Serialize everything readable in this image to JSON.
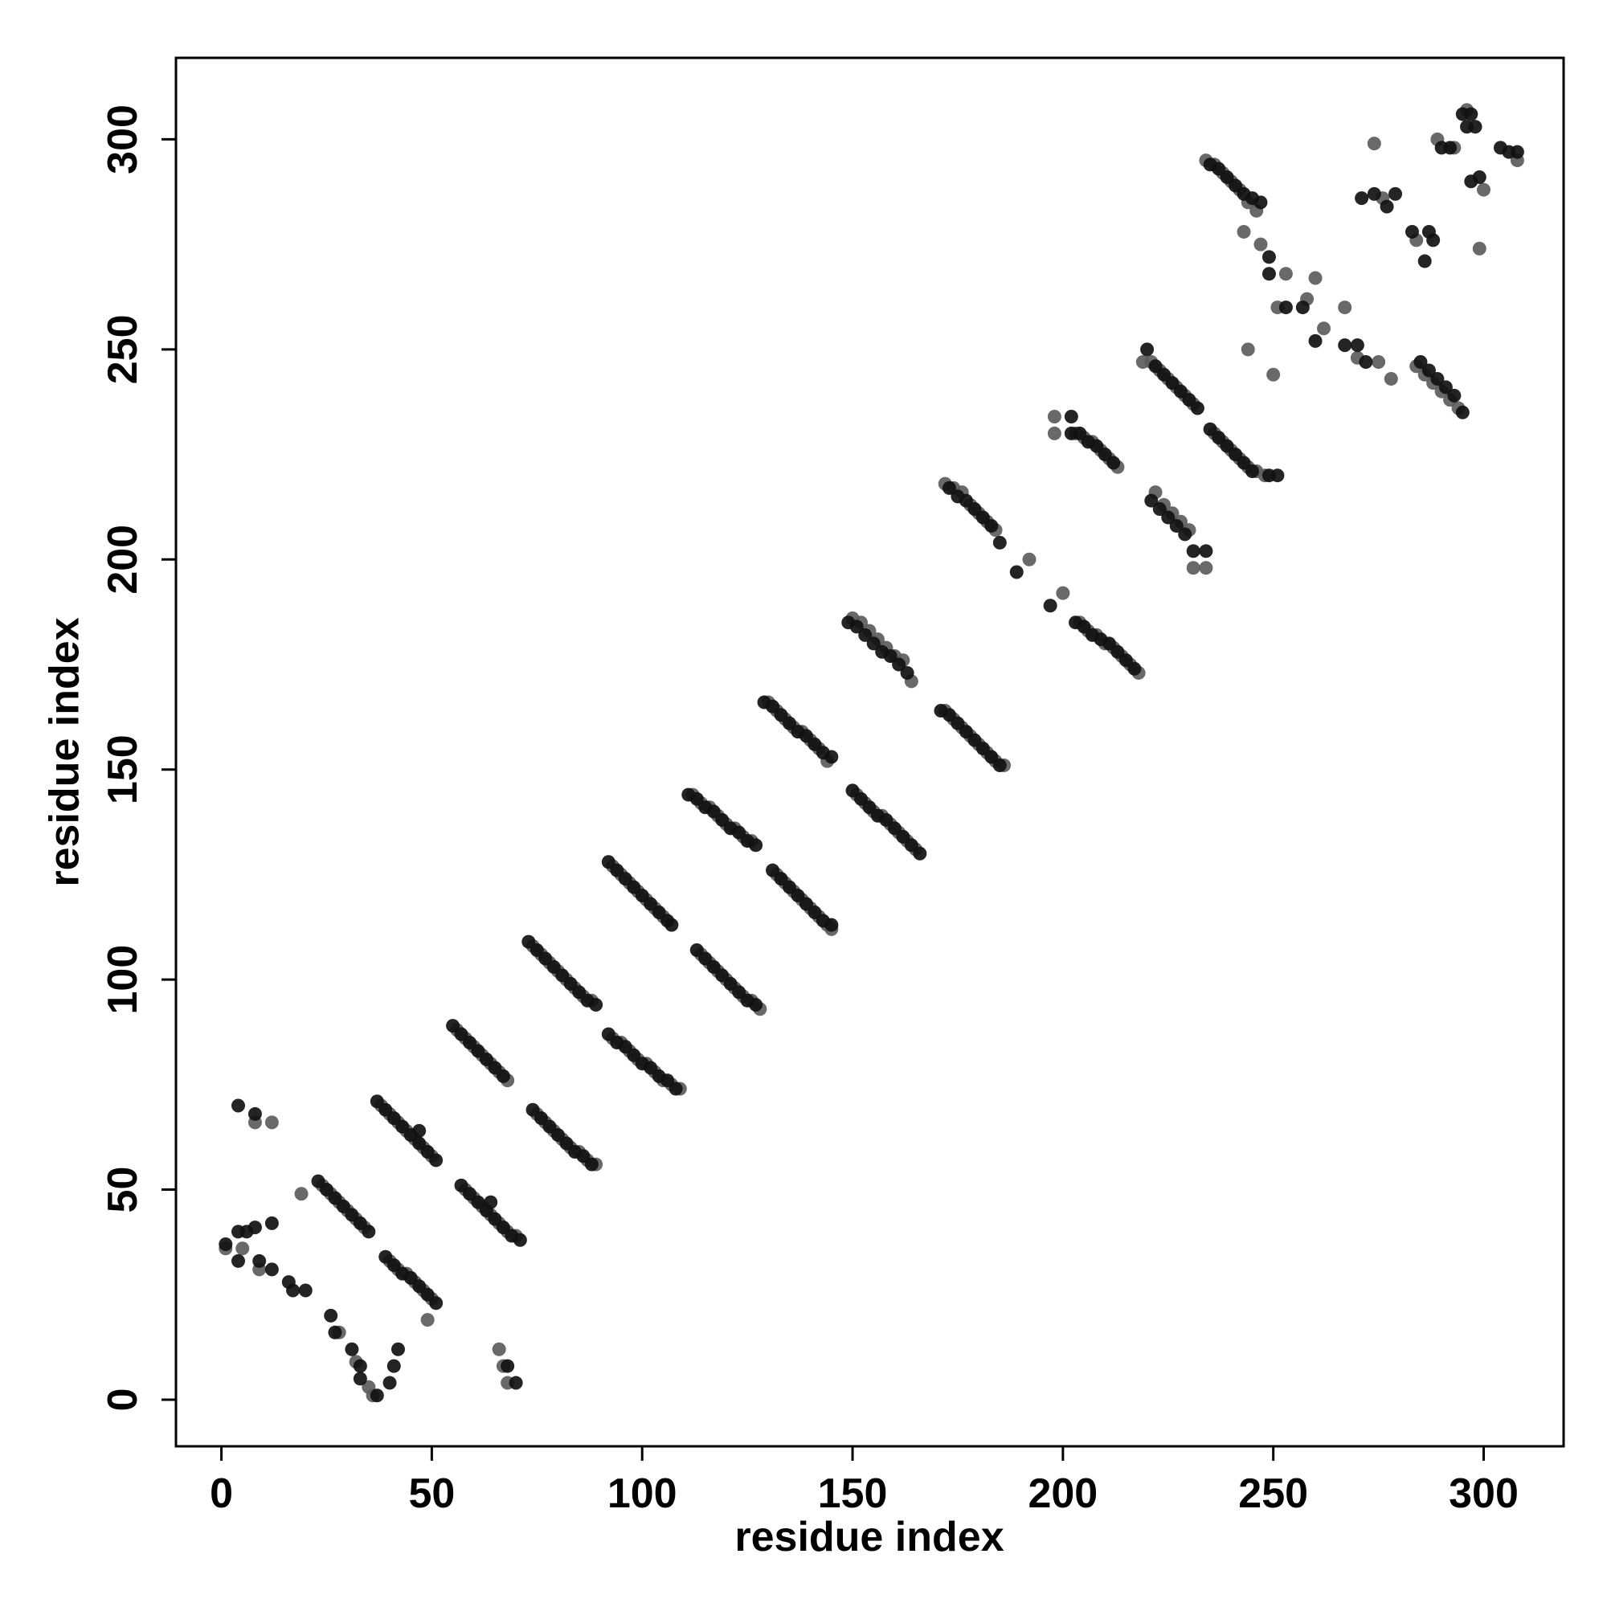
{
  "chart_data": {
    "type": "scatter",
    "xlabel": "residue index",
    "ylabel": "residue index",
    "xlim": [
      -10.8,
      319
    ],
    "ylim": [
      -11.1,
      319.4
    ],
    "xticks": [
      0,
      50,
      100,
      150,
      200,
      250,
      300
    ],
    "yticks": [
      0,
      50,
      100,
      150,
      200,
      250,
      300
    ],
    "series": [
      {
        "color": "#5c5c5c",
        "x": [
          1,
          5,
          9,
          19,
          28,
          32,
          36,
          35,
          8,
          12,
          66,
          67,
          68,
          24,
          26,
          28,
          30,
          32,
          34,
          40,
          42,
          44,
          46,
          48,
          50,
          49,
          38,
          40,
          42,
          44,
          46,
          48,
          50,
          58,
          60,
          62,
          64,
          66,
          68,
          70,
          56,
          58,
          60,
          62,
          64,
          66,
          68,
          75,
          77,
          79,
          81,
          83,
          85,
          87,
          89,
          74,
          76,
          78,
          80,
          82,
          84,
          86,
          88,
          93,
          95,
          97,
          99,
          101,
          103,
          105,
          107,
          109,
          93,
          95,
          97,
          99,
          101,
          103,
          105,
          114,
          116,
          118,
          120,
          122,
          124,
          126,
          128,
          112,
          114,
          116,
          118,
          120,
          122,
          124,
          126,
          132,
          134,
          136,
          138,
          140,
          142,
          144,
          145,
          130,
          132,
          134,
          136,
          138,
          140,
          142,
          144,
          151,
          153,
          155,
          157,
          159,
          161,
          163,
          165,
          150,
          152,
          154,
          156,
          158,
          160,
          162,
          164,
          172,
          174,
          176,
          178,
          180,
          182,
          184,
          186,
          172,
          174,
          176,
          178,
          180,
          182,
          184,
          204,
          206,
          208,
          210,
          212,
          214,
          216,
          218,
          192,
          200,
          198,
          198,
          203,
          205,
          207,
          209,
          211,
          213,
          222,
          224,
          226,
          228,
          230,
          231,
          234,
          219,
          221,
          223,
          225,
          227,
          229,
          231,
          236,
          238,
          240,
          242,
          244,
          246,
          248,
          234,
          236,
          238,
          240,
          242,
          244,
          246,
          284,
          286,
          288,
          290,
          292,
          294,
          243,
          247,
          253,
          251,
          258,
          244,
          250,
          260,
          262,
          267,
          274,
          276,
          275,
          278,
          284,
          289,
          293,
          300,
          299,
          308,
          296,
          270
        ],
        "values": [
          36,
          36,
          31,
          49,
          16,
          9,
          1,
          3,
          66,
          66,
          12,
          8,
          4,
          51,
          49,
          47,
          45,
          43,
          41,
          33,
          31,
          30,
          28,
          26,
          24,
          19,
          70,
          68,
          66,
          64,
          62,
          60,
          58,
          50,
          48,
          46,
          44,
          42,
          40,
          39,
          88,
          86,
          84,
          82,
          80,
          78,
          76,
          68,
          66,
          64,
          62,
          60,
          59,
          57,
          56,
          108,
          106,
          104,
          102,
          100,
          98,
          96,
          95,
          86,
          85,
          83,
          81,
          80,
          78,
          76,
          75,
          74,
          127,
          125,
          123,
          121,
          119,
          117,
          115,
          106,
          104,
          102,
          100,
          98,
          96,
          95,
          93,
          144,
          142,
          141,
          139,
          137,
          136,
          134,
          133,
          125,
          123,
          121,
          119,
          117,
          115,
          113,
          112,
          166,
          164,
          162,
          160,
          159,
          157,
          155,
          152,
          144,
          142,
          140,
          139,
          137,
          135,
          133,
          131,
          186,
          185,
          183,
          181,
          179,
          177,
          176,
          171,
          164,
          162,
          160,
          158,
          156,
          154,
          152,
          151,
          218,
          217,
          216,
          213,
          211,
          209,
          207,
          185,
          183,
          182,
          180,
          179,
          177,
          175,
          173,
          200,
          192,
          234,
          230,
          230,
          229,
          228,
          226,
          224,
          222,
          216,
          213,
          211,
          209,
          207,
          198,
          198,
          247,
          247,
          245,
          243,
          241,
          239,
          237,
          230,
          228,
          226,
          224,
          222,
          221,
          220,
          295,
          294,
          292,
          290,
          288,
          285,
          283,
          246,
          244,
          242,
          240,
          238,
          236,
          278,
          275,
          268,
          260,
          262,
          250,
          244,
          267,
          255,
          260,
          299,
          286,
          247,
          243,
          276,
          300,
          298,
          288,
          274,
          295,
          307,
          248
        ]
      },
      {
        "color": "#111111",
        "x": [
          1,
          4,
          6,
          4,
          8,
          9,
          12,
          12,
          16,
          17,
          20,
          26,
          27,
          31,
          33,
          33,
          37,
          40,
          41,
          42,
          4,
          8,
          68,
          70,
          23,
          25,
          27,
          29,
          31,
          33,
          35,
          39,
          41,
          43,
          45,
          47,
          49,
          51,
          37,
          39,
          41,
          43,
          45,
          47,
          49,
          51,
          47,
          57,
          59,
          61,
          63,
          65,
          67,
          69,
          71,
          64,
          55,
          57,
          59,
          61,
          63,
          65,
          67,
          74,
          76,
          78,
          80,
          82,
          84,
          86,
          88,
          73,
          75,
          77,
          79,
          81,
          83,
          85,
          87,
          89,
          92,
          94,
          96,
          98,
          100,
          102,
          104,
          106,
          108,
          92,
          94,
          96,
          98,
          100,
          102,
          104,
          106,
          107,
          113,
          115,
          117,
          119,
          121,
          123,
          125,
          127,
          111,
          113,
          115,
          117,
          119,
          121,
          123,
          125,
          127,
          131,
          133,
          135,
          137,
          139,
          141,
          143,
          145,
          129,
          131,
          133,
          135,
          137,
          139,
          141,
          143,
          145,
          150,
          152,
          154,
          156,
          158,
          160,
          162,
          164,
          166,
          149,
          151,
          153,
          155,
          157,
          159,
          161,
          163,
          171,
          173,
          175,
          177,
          179,
          181,
          183,
          185,
          173,
          175,
          177,
          179,
          181,
          183,
          185,
          203,
          205,
          207,
          209,
          211,
          213,
          215,
          217,
          189,
          197,
          202,
          202,
          204,
          206,
          208,
          210,
          212,
          221,
          223,
          225,
          227,
          229,
          231,
          234,
          220,
          222,
          224,
          226,
          228,
          230,
          232,
          235,
          237,
          239,
          241,
          243,
          245,
          249,
          251,
          235,
          237,
          239,
          241,
          243,
          245,
          247,
          285,
          287,
          289,
          291,
          293,
          295,
          249,
          249,
          253,
          257,
          260,
          267,
          270,
          272,
          271,
          274,
          277,
          279,
          283,
          286,
          287,
          288,
          290,
          292,
          295,
          297,
          296,
          298,
          297,
          299,
          304,
          306,
          308
        ],
        "values": [
          37,
          40,
          40,
          33,
          41,
          33,
          42,
          31,
          28,
          26,
          26,
          20,
          16,
          12,
          8,
          5,
          1,
          4,
          8,
          12,
          70,
          68,
          8,
          4,
          52,
          50,
          48,
          46,
          44,
          42,
          40,
          34,
          32,
          30,
          29,
          27,
          25,
          23,
          71,
          69,
          67,
          65,
          63,
          61,
          59,
          57,
          64,
          51,
          49,
          47,
          45,
          43,
          41,
          39,
          38,
          47,
          89,
          87,
          85,
          83,
          81,
          79,
          77,
          69,
          67,
          65,
          63,
          61,
          59,
          58,
          56,
          109,
          107,
          105,
          103,
          101,
          99,
          97,
          95,
          94,
          87,
          85,
          84,
          82,
          80,
          79,
          77,
          76,
          74,
          128,
          126,
          124,
          122,
          120,
          118,
          116,
          114,
          113,
          107,
          105,
          103,
          101,
          99,
          97,
          95,
          94,
          144,
          143,
          141,
          140,
          138,
          136,
          135,
          133,
          132,
          126,
          124,
          122,
          120,
          118,
          116,
          114,
          113,
          166,
          165,
          163,
          161,
          159,
          158,
          156,
          154,
          153,
          145,
          143,
          141,
          139,
          138,
          136,
          134,
          132,
          130,
          185,
          184,
          182,
          180,
          178,
          177,
          175,
          173,
          164,
          163,
          161,
          159,
          157,
          155,
          153,
          151,
          217,
          215,
          214,
          212,
          210,
          208,
          204,
          185,
          184,
          182,
          181,
          180,
          178,
          176,
          174,
          197,
          189,
          234,
          230,
          230,
          228,
          227,
          225,
          223,
          214,
          212,
          210,
          208,
          206,
          202,
          202,
          250,
          246,
          244,
          242,
          240,
          238,
          236,
          231,
          229,
          227,
          225,
          223,
          221,
          220,
          220,
          294,
          293,
          291,
          289,
          287,
          286,
          285,
          247,
          245,
          243,
          241,
          239,
          235,
          272,
          268,
          260,
          260,
          252,
          251,
          251,
          247,
          286,
          287,
          284,
          287,
          278,
          271,
          278,
          276,
          298,
          298,
          306,
          306,
          303,
          303,
          290,
          291,
          298,
          297,
          297
        ]
      }
    ]
  }
}
